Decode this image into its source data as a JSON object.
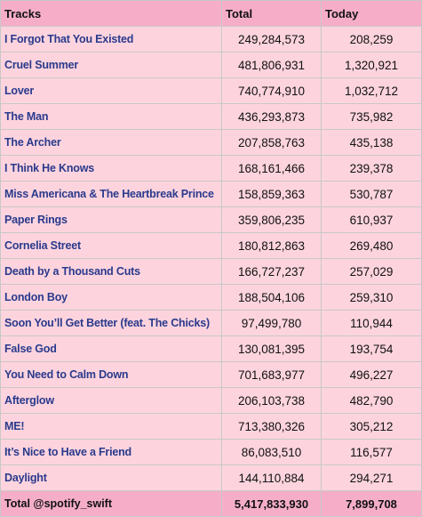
{
  "headers": {
    "tracks": "Tracks",
    "total": "Total",
    "today": "Today"
  },
  "rows": [
    {
      "track": "I Forgot That You Existed",
      "total": "249,284,573",
      "today": "208,259"
    },
    {
      "track": "Cruel Summer",
      "total": "481,806,931",
      "today": "1,320,921"
    },
    {
      "track": "Lover",
      "total": "740,774,910",
      "today": "1,032,712"
    },
    {
      "track": "The Man",
      "total": "436,293,873",
      "today": "735,982"
    },
    {
      "track": "The Archer",
      "total": "207,858,763",
      "today": "435,138"
    },
    {
      "track": "I Think He Knows",
      "total": "168,161,466",
      "today": "239,378"
    },
    {
      "track": "Miss Americana & The Heartbreak Prince",
      "total": "158,859,363",
      "today": "530,787"
    },
    {
      "track": "Paper Rings",
      "total": "359,806,235",
      "today": "610,937"
    },
    {
      "track": "Cornelia Street",
      "total": "180,812,863",
      "today": "269,480"
    },
    {
      "track": "Death by a Thousand Cuts",
      "total": "166,727,237",
      "today": "257,029"
    },
    {
      "track": "London Boy",
      "total": "188,504,106",
      "today": "259,310"
    },
    {
      "track": "Soon You’ll Get Better (feat. The Chicks)",
      "total": "97,499,780",
      "today": "110,944"
    },
    {
      "track": "False God",
      "total": "130,081,395",
      "today": "193,754"
    },
    {
      "track": "You Need to Calm Down",
      "total": "701,683,977",
      "today": "496,227"
    },
    {
      "track": "Afterglow",
      "total": "206,103,738",
      "today": "482,790"
    },
    {
      "track": "ME!",
      "total": "713,380,326",
      "today": "305,212"
    },
    {
      "track": "It’s Nice to Have a Friend",
      "total": "86,083,510",
      "today": "116,577"
    },
    {
      "track": "Daylight",
      "total": "144,110,884",
      "today": "294,271"
    }
  ],
  "footer": {
    "label": "Total @spotify_swift",
    "total": "5,417,833,930",
    "today": "7,899,708"
  },
  "colors": {
    "header_bg": "#f6aec8",
    "row_bg": "#fdd4de",
    "track_text": "#2a3a8c",
    "border": "#c8c8c8"
  }
}
